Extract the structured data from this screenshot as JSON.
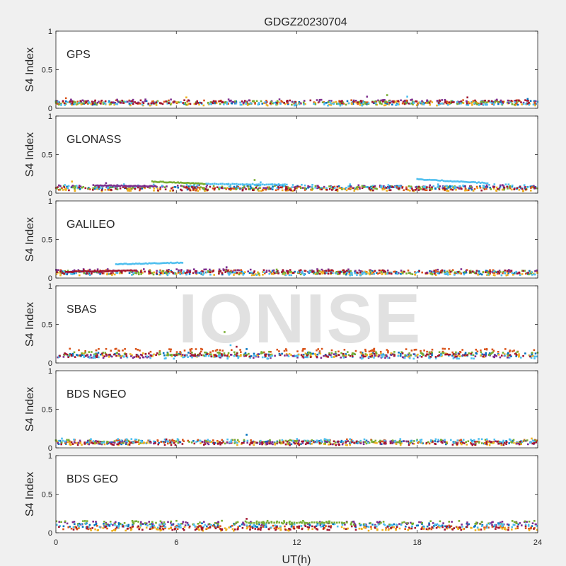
{
  "figure_title": "GDGZ20230704",
  "watermark": "IONISE",
  "colors": {
    "background": "#f0f0f0",
    "axes_bg": "#ffffff",
    "axis": "#262626",
    "series": [
      "#0072BD",
      "#D95319",
      "#EDB120",
      "#7E2F8E",
      "#77AC30",
      "#4DBEEE",
      "#A2142F"
    ]
  },
  "chart_data": [
    {
      "type": "scatter",
      "label": "GPS",
      "ylabel": "S4 Index",
      "xlim": [
        0,
        24
      ],
      "ylim": [
        0,
        1
      ],
      "xticks": [
        0,
        6,
        12,
        18,
        24
      ],
      "yticks": [
        0,
        0.5,
        1
      ],
      "ytick_labels": [
        "0",
        "0.5",
        "1"
      ],
      "baseline": [
        0.07,
        0.08,
        0.06,
        0.09,
        0.07,
        0.06,
        0.08
      ],
      "spikes": [
        [
          0.5,
          0.13
        ],
        [
          6.5,
          0.14
        ],
        [
          15.5,
          0.15
        ],
        [
          16.5,
          0.17
        ],
        [
          17.5,
          0.15
        ],
        [
          20.5,
          0.14
        ],
        [
          23.5,
          0.12
        ]
      ],
      "segments": []
    },
    {
      "type": "scatter",
      "label": "GLONASS",
      "ylabel": "S4 Index",
      "xlim": [
        0,
        24
      ],
      "ylim": [
        0,
        1
      ],
      "xticks": [
        0,
        6,
        12,
        18,
        24
      ],
      "yticks": [
        0,
        0.5,
        1
      ],
      "ytick_labels": [
        "0",
        "0.5",
        "1"
      ],
      "baseline": [
        0.07,
        0.06,
        0.05,
        0.08,
        0.07,
        0.09,
        0.06
      ],
      "spikes": [
        [
          0.8,
          0.15
        ],
        [
          2.5,
          0.13
        ],
        [
          9.9,
          0.17
        ],
        [
          10.2,
          0.14
        ]
      ],
      "segments": [
        {
          "series": 4,
          "x": [
            4.8,
            7.5
          ],
          "y": [
            0.15,
            0.12
          ]
        },
        {
          "series": 5,
          "x": [
            7.5,
            11.5
          ],
          "y": [
            0.12,
            0.11
          ]
        },
        {
          "series": 5,
          "x": [
            18.0,
            21.5
          ],
          "y": [
            0.18,
            0.13
          ]
        },
        {
          "series": 3,
          "x": [
            2.0,
            5.0
          ],
          "y": [
            0.1,
            0.09
          ]
        }
      ]
    },
    {
      "type": "scatter",
      "label": "GALILEO",
      "ylabel": "S4 Index",
      "xlim": [
        0,
        24
      ],
      "ylim": [
        0,
        1
      ],
      "xticks": [
        0,
        6,
        12,
        18,
        24
      ],
      "yticks": [
        0,
        0.5,
        1
      ],
      "ytick_labels": [
        "0",
        "0.5",
        "1"
      ],
      "baseline": [
        0.07,
        0.08,
        0.06,
        0.09,
        0.07,
        0.06,
        0.08
      ],
      "spikes": [
        [
          8.5,
          0.14
        ],
        [
          11.0,
          0.11
        ]
      ],
      "segments": [
        {
          "series": 5,
          "x": [
            3.0,
            6.3
          ],
          "y": [
            0.18,
            0.2
          ]
        },
        {
          "series": 6,
          "x": [
            0.5,
            4.0
          ],
          "y": [
            0.08,
            0.1
          ]
        }
      ]
    },
    {
      "type": "scatter",
      "label": "SBAS",
      "ylabel": "S4 Index",
      "xlim": [
        0,
        24
      ],
      "ylim": [
        0,
        1
      ],
      "xticks": [
        0,
        6,
        12,
        18,
        24
      ],
      "yticks": [
        0,
        0.5,
        1
      ],
      "ytick_labels": [
        "0",
        "0.5",
        "1"
      ],
      "baseline": [
        0.11,
        0.16,
        0.1,
        0.09,
        0.12,
        0.08,
        0.1
      ],
      "spikes": [
        [
          8.4,
          0.4
        ],
        [
          8.7,
          0.23
        ],
        [
          9.0,
          0.21
        ],
        [
          9.5,
          0.18
        ]
      ],
      "segments": []
    },
    {
      "type": "scatter",
      "label": "BDS NGEO",
      "ylabel": "S4 Index",
      "xlim": [
        0,
        24
      ],
      "ylim": [
        0,
        1
      ],
      "xticks": [
        0,
        6,
        12,
        18,
        24
      ],
      "yticks": [
        0,
        0.5,
        1
      ],
      "ytick_labels": [
        "0",
        "0.5",
        "1"
      ],
      "baseline": [
        0.07,
        0.08,
        0.06,
        0.07,
        0.08,
        0.09,
        0.06
      ],
      "spikes": [
        [
          0.3,
          0.12
        ],
        [
          5.5,
          0.11
        ],
        [
          9.5,
          0.17
        ],
        [
          14.5,
          0.11
        ],
        [
          23.7,
          0.12
        ]
      ],
      "segments": []
    },
    {
      "type": "scatter",
      "label": "BDS GEO",
      "ylabel": "S4 Index",
      "xlim": [
        0,
        24
      ],
      "ylim": [
        0,
        1
      ],
      "xticks": [
        0,
        6,
        12,
        18,
        24
      ],
      "yticks": [
        0,
        0.5,
        1
      ],
      "ytick_labels": [
        "0",
        "0.5",
        "1"
      ],
      "xlabel": "UT(h)",
      "xtick_labels": [
        "0",
        "6",
        "12",
        "18",
        "24"
      ],
      "baseline": [
        0.1,
        0.07,
        0.05,
        0.12,
        0.13,
        0.09,
        0.06
      ],
      "spikes": [
        [
          9.5,
          0.18
        ]
      ],
      "segments": [
        {
          "series": 4,
          "x": [
            9.5,
            14.5
          ],
          "y": [
            0.13,
            0.13
          ]
        }
      ]
    }
  ]
}
